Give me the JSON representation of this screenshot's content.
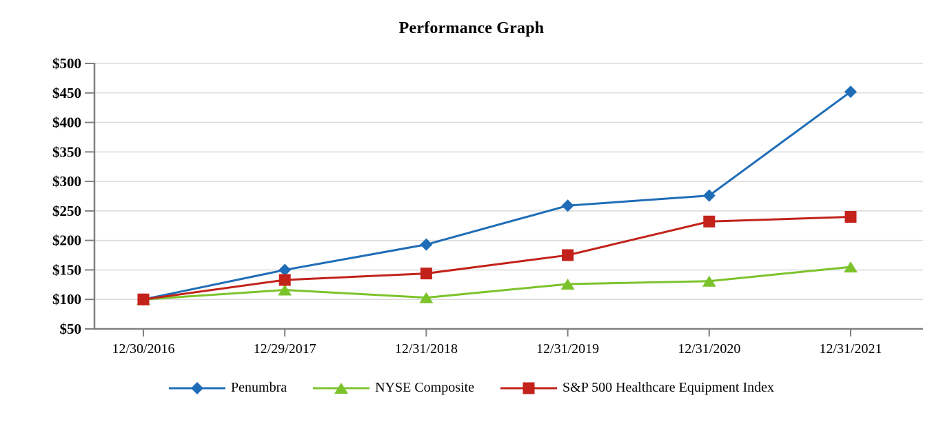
{
  "chart_data": {
    "type": "line",
    "title": "Performance Graph",
    "categories": [
      "12/30/2016",
      "12/29/2017",
      "12/31/2018",
      "12/31/2019",
      "12/31/2020",
      "12/31/2021"
    ],
    "series": [
      {
        "name": "Penumbra",
        "marker": "diamond",
        "color": "#1f6db7",
        "values": [
          100,
          150,
          193,
          259,
          276,
          452
        ]
      },
      {
        "name": "NYSE Composite",
        "marker": "triangle",
        "color": "#7cc32b",
        "values": [
          100,
          116,
          103,
          126,
          131,
          155
        ]
      },
      {
        "name": "S&P 500 Healthcare Equipment Index",
        "marker": "square",
        "color": "#c2221a",
        "values": [
          100,
          133,
          144,
          175,
          232,
          240
        ]
      }
    ],
    "y_axis": {
      "min": 50,
      "max": 500,
      "step": 50,
      "tick_labels": [
        "$50",
        "$100",
        "$150",
        "$200",
        "$250",
        "$300",
        "$350",
        "$400",
        "$450",
        "$500"
      ]
    },
    "xlabel": "",
    "ylabel": "",
    "grid": true,
    "legend_position": "bottom"
  },
  "colors": {
    "axis": "#808080",
    "gridline": "#d9d9d9",
    "text": "#000000",
    "background": "#ffffff"
  }
}
